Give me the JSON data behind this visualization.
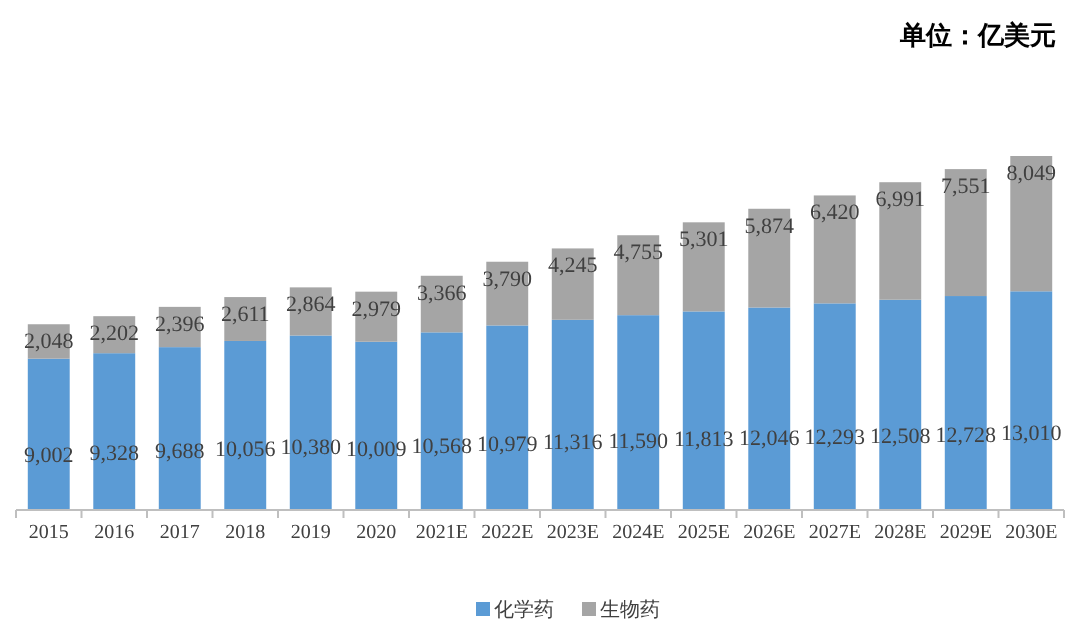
{
  "chart_data": {
    "type": "bar",
    "stacked": true,
    "annotations": [
      "单位：亿美元"
    ],
    "legend": "bottom",
    "categories": [
      "2015",
      "2016",
      "2017",
      "2018",
      "2019",
      "2020",
      "2021E",
      "2022E",
      "2023E",
      "2024E",
      "2025E",
      "2026E",
      "2027E",
      "2028E",
      "2029E",
      "2030E"
    ],
    "series": [
      {
        "name": "化学药",
        "color": "#5b9bd5",
        "values": [
          9002,
          9328,
          9688,
          10056,
          10380,
          10009,
          10568,
          10979,
          11316,
          11590,
          11813,
          12046,
          12293,
          12508,
          12728,
          13010
        ],
        "value_labels": [
          "9,002",
          "9,328",
          "9,688",
          "10,056",
          "10,380",
          "10,009",
          "10,568",
          "10,979",
          "11,316",
          "11,590",
          "11,813",
          "12,046",
          "12,293",
          "12,508",
          "12,728",
          "13,010"
        ]
      },
      {
        "name": "生物药",
        "color": "#a5a5a5",
        "values": [
          2048,
          2202,
          2396,
          2611,
          2864,
          2979,
          3366,
          3790,
          4245,
          4755,
          5301,
          5874,
          6420,
          6991,
          7551,
          8049
        ],
        "value_labels": [
          "2,048",
          "2,202",
          "2,396",
          "2,611",
          "2,864",
          "2,979",
          "3,366",
          "3,790",
          "4,245",
          "4,755",
          "5,301",
          "5,874",
          "6,420",
          "6,991",
          "7,551",
          "8,049"
        ]
      }
    ]
  }
}
